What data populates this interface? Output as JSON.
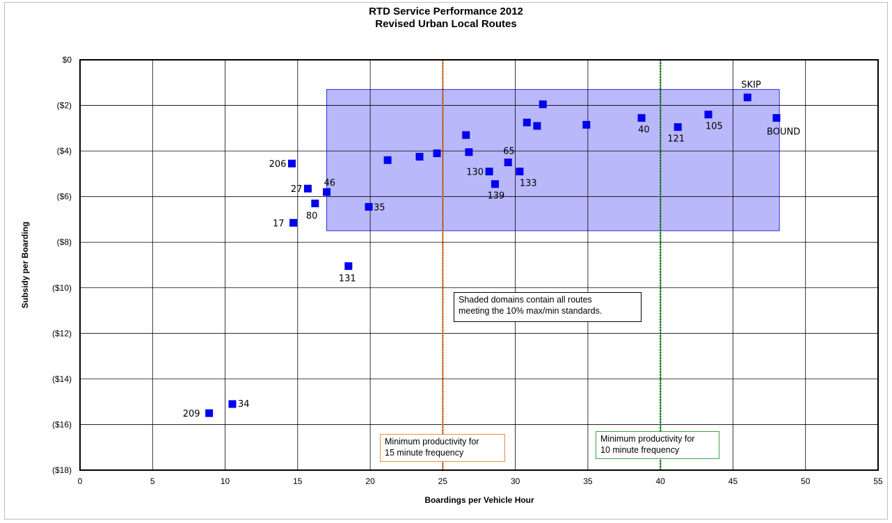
{
  "chart_data": {
    "type": "scatter",
    "title": "RTD Service Performance 2012",
    "subtitle": "Revised Urban Local Routes",
    "xlabel": "Boardings per Vehicle Hour",
    "ylabel": "Subsidy per Boarding",
    "xlim": [
      0,
      55
    ],
    "ylim": [
      -18,
      0
    ],
    "x_ticks": [
      "0",
      "5",
      "10",
      "15",
      "20",
      "25",
      "30",
      "35",
      "40",
      "45",
      "50",
      "55"
    ],
    "y_ticks": [
      "$0",
      "($2)",
      "($4)",
      "($6)",
      "($8)",
      "($10)",
      "($12)",
      "($14)",
      "($16)",
      "($18)"
    ],
    "grid": true,
    "marker_color": "#0000ee",
    "shaded_region": {
      "x": [
        17,
        48.2
      ],
      "y": [
        -7.5,
        -1.3
      ],
      "color": "#b8b8fb"
    },
    "reference_lines": [
      {
        "x": 25,
        "color": "#ff6600",
        "label": "Minimum productivity for 15 minute frequency"
      },
      {
        "x": 40,
        "color": "#008800",
        "label": "Minimum productivity for 10 minute frequency"
      }
    ],
    "points": [
      {
        "x": 46.0,
        "y": -1.65,
        "label": "SKIP"
      },
      {
        "x": 48.0,
        "y": -2.55,
        "label": "BOUND"
      },
      {
        "x": 43.3,
        "y": -2.4,
        "label": "105"
      },
      {
        "x": 41.2,
        "y": -2.95,
        "label": "121"
      },
      {
        "x": 38.7,
        "y": -2.55,
        "label": "40"
      },
      {
        "x": 34.9,
        "y": -2.85,
        "label": ""
      },
      {
        "x": 31.9,
        "y": -1.95,
        "label": ""
      },
      {
        "x": 31.5,
        "y": -2.9,
        "label": ""
      },
      {
        "x": 30.8,
        "y": -2.75,
        "label": ""
      },
      {
        "x": 29.5,
        "y": -4.5,
        "label": "65"
      },
      {
        "x": 30.3,
        "y": -4.9,
        "label": "133"
      },
      {
        "x": 28.6,
        "y": -5.45,
        "label": "139"
      },
      {
        "x": 28.2,
        "y": -4.9,
        "label": "130"
      },
      {
        "x": 26.8,
        "y": -4.05,
        "label": ""
      },
      {
        "x": 26.6,
        "y": -3.3,
        "label": ""
      },
      {
        "x": 24.6,
        "y": -4.1,
        "label": ""
      },
      {
        "x": 23.4,
        "y": -4.25,
        "label": ""
      },
      {
        "x": 21.2,
        "y": -4.4,
        "label": ""
      },
      {
        "x": 19.9,
        "y": -6.45,
        "label": "35"
      },
      {
        "x": 18.5,
        "y": -9.05,
        "label": "131"
      },
      {
        "x": 17.0,
        "y": -5.8,
        "label": "46"
      },
      {
        "x": 16.2,
        "y": -6.3,
        "label": "80"
      },
      {
        "x": 15.7,
        "y": -5.65,
        "label": "27"
      },
      {
        "x": 14.6,
        "y": -4.55,
        "label": "206"
      },
      {
        "x": 14.7,
        "y": -7.15,
        "label": "17"
      },
      {
        "x": 10.5,
        "y": -15.1,
        "label": "34"
      },
      {
        "x": 8.9,
        "y": -15.5,
        "label": "209"
      }
    ]
  },
  "notes": {
    "shaded": [
      "Shaded domains contain all routes",
      "meeting the 10% max/min standards."
    ],
    "freq15": [
      "Minimum productivity for",
      "15 minute frequency"
    ],
    "freq10": [
      "Minimum productivity for",
      "10 minute frequency"
    ]
  }
}
